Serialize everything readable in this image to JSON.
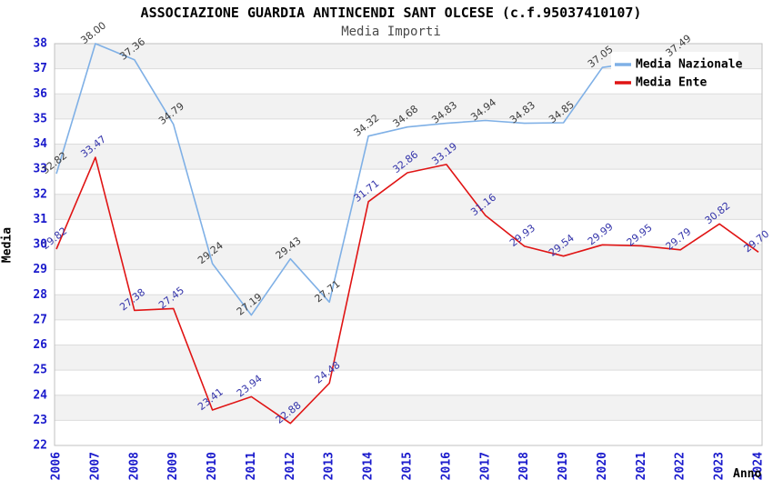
{
  "chart_data": {
    "type": "line",
    "title": "ASSOCIAZIONE GUARDIA ANTINCENDI SANT OLCESE (c.f.95037410107)",
    "subtitle": "Media Importi",
    "xlabel": "Anno",
    "ylabel": "Media",
    "ylim": [
      22,
      38
    ],
    "ytick_step": 1,
    "grid": true,
    "alternating_bands": true,
    "legend_position": "top-right",
    "categories": [
      "2006",
      "2007",
      "2008",
      "2009",
      "2010",
      "2011",
      "2012",
      "2013",
      "2014",
      "2015",
      "2016",
      "2017",
      "2018",
      "2019",
      "2020",
      "2021",
      "2022",
      "2023",
      "2024"
    ],
    "series": [
      {
        "name": "Media Nazionale",
        "color": "#7fb0e6",
        "label_color": "#3c3c3c",
        "values": [
          32.82,
          38.0,
          37.36,
          34.79,
          29.24,
          27.19,
          29.43,
          27.71,
          34.32,
          34.68,
          34.83,
          34.94,
          34.83,
          34.85,
          37.05,
          null,
          37.49,
          null,
          null
        ]
      },
      {
        "name": "Media Ente",
        "color": "#e01414",
        "label_color": "#3434aa",
        "values": [
          29.82,
          33.47,
          27.38,
          27.45,
          23.41,
          23.94,
          22.88,
          24.48,
          31.71,
          32.86,
          33.19,
          31.16,
          29.93,
          29.54,
          29.99,
          29.95,
          29.79,
          30.82,
          29.7
        ]
      }
    ],
    "colors": {
      "axis_tick": "#1a1acc",
      "grid_line": "#dcdcdc",
      "band_fill": "#f2f2f2",
      "plot_border": "#c0c0c0",
      "legend_background": "#ffffff"
    }
  }
}
